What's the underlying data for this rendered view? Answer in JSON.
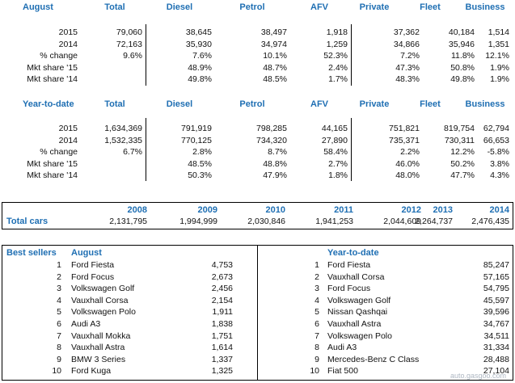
{
  "august": {
    "headers": [
      "August",
      "Total",
      "Diesel",
      "Petrol",
      "AFV",
      "Private",
      "Fleet",
      "Business"
    ],
    "rows": [
      [
        "2015",
        "79,060",
        "38,645",
        "38,497",
        "1,918",
        "37,362",
        "40,184",
        "1,514"
      ],
      [
        "2014",
        "72,163",
        "35,930",
        "34,974",
        "1,259",
        "34,866",
        "35,946",
        "1,351"
      ],
      [
        "% change",
        "9.6%",
        "7.6%",
        "10.1%",
        "52.3%",
        "7.2%",
        "11.8%",
        "12.1%"
      ],
      [
        "Mkt share '15",
        "",
        "48.9%",
        "48.7%",
        "2.4%",
        "47.3%",
        "50.8%",
        "1.9%"
      ],
      [
        "Mkt share '14",
        "",
        "49.8%",
        "48.5%",
        "1.7%",
        "48.3%",
        "49.8%",
        "1.9%"
      ]
    ]
  },
  "ytd": {
    "headers": [
      "Year-to-date",
      "Total",
      "Diesel",
      "Petrol",
      "AFV",
      "Private",
      "Fleet",
      "Business"
    ],
    "rows": [
      [
        "2015",
        "1,634,369",
        "791,919",
        "798,285",
        "44,165",
        "751,821",
        "819,754",
        "62,794"
      ],
      [
        "2014",
        "1,532,335",
        "770,125",
        "734,320",
        "27,890",
        "735,371",
        "730,311",
        "66,653"
      ],
      [
        "% change",
        "6.7%",
        "2.8%",
        "8.7%",
        "58.4%",
        "2.2%",
        "12.2%",
        "-5.8%"
      ],
      [
        "Mkt share '15",
        "",
        "48.5%",
        "48.8%",
        "2.7%",
        "46.0%",
        "50.2%",
        "3.8%"
      ],
      [
        "Mkt share '14",
        "",
        "50.3%",
        "47.9%",
        "1.8%",
        "48.0%",
        "47.7%",
        "4.3%"
      ]
    ]
  },
  "years": {
    "headers": [
      "2008",
      "2009",
      "2010",
      "2011",
      "2012",
      "2013",
      "2014"
    ],
    "label": "Total cars",
    "values": [
      "2,131,795",
      "1,994,999",
      "2,030,846",
      "1,941,253",
      "2,044,609",
      "2,264,737",
      "2,476,435"
    ]
  },
  "best": {
    "title": "Best sellers",
    "aug_title": "August",
    "ytd_title": "Year-to-date",
    "aug": [
      [
        "1",
        "Ford Fiesta",
        "4,753"
      ],
      [
        "2",
        "Ford Focus",
        "2,673"
      ],
      [
        "3",
        "Volkswagen Golf",
        "2,456"
      ],
      [
        "4",
        "Vauxhall Corsa",
        "2,154"
      ],
      [
        "5",
        "Volkswagen Polo",
        "1,911"
      ],
      [
        "6",
        "Audi A3",
        "1,838"
      ],
      [
        "7",
        "Vauxhall Mokka",
        "1,751"
      ],
      [
        "8",
        "Vauxhall Astra",
        "1,614"
      ],
      [
        "9",
        "BMW 3 Series",
        "1,337"
      ],
      [
        "10",
        "Ford Kuga",
        "1,325"
      ]
    ],
    "ytd": [
      [
        "1",
        "Ford Fiesta",
        "85,247"
      ],
      [
        "2",
        "Vauxhall Corsa",
        "57,165"
      ],
      [
        "3",
        "Ford Focus",
        "54,795"
      ],
      [
        "4",
        "Volkswagen Golf",
        "45,597"
      ],
      [
        "5",
        "Nissan Qashqai",
        "39,596"
      ],
      [
        "6",
        "Vauxhall Astra",
        "34,767"
      ],
      [
        "7",
        "Volkswagen Polo",
        "34,511"
      ],
      [
        "8",
        "Audi A3",
        "31,334"
      ],
      [
        "9",
        "Mercedes-Benz C Class",
        "28,488"
      ],
      [
        "10",
        "Fiat 500",
        "27,104"
      ]
    ]
  },
  "watermark": "auto.gasgoo.com"
}
